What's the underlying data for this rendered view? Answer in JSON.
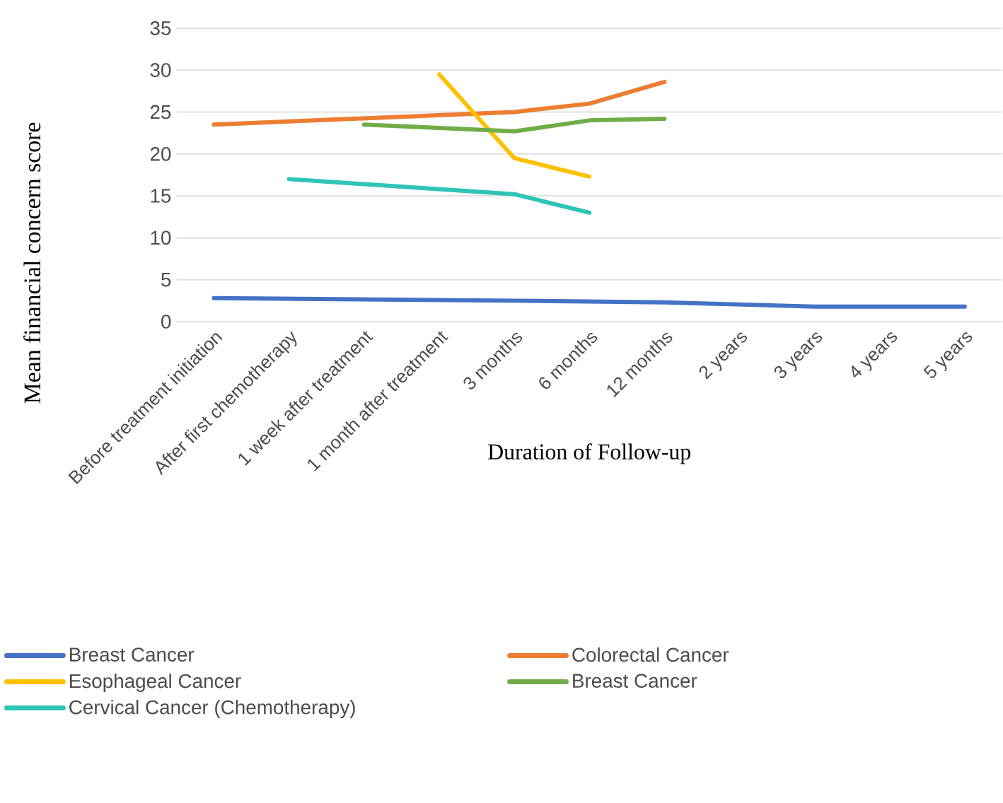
{
  "chart_data": {
    "type": "line",
    "xlabel": "Duration of Follow-up",
    "ylabel": "Mean financial concern  score",
    "categories": [
      "Before treatment initiation",
      "After first chemotherapy",
      "1 week after treatment",
      "1 month after treatment",
      "3 months",
      "6 months",
      "12 months",
      "2 years",
      "3 years",
      "4 years",
      "5 years"
    ],
    "series": [
      {
        "name": "Breast Cancer",
        "color": "#4472c4",
        "values": [
          2.8,
          null,
          null,
          null,
          2.5,
          2.4,
          2.3,
          null,
          1.8,
          1.8,
          1.8
        ]
      },
      {
        "name": "Colorectal Cancer",
        "color": "#ed7d31",
        "values": [
          23.5,
          null,
          null,
          null,
          25,
          26,
          28.6,
          null,
          null,
          null,
          null
        ]
      },
      {
        "name": "Esophageal Cancer",
        "color": "#ffc000",
        "values": [
          null,
          null,
          null,
          29.5,
          19.5,
          17.3,
          null,
          null,
          null,
          null,
          null
        ]
      },
      {
        "name": "Breast Cancer",
        "color": "#70ad47",
        "values": [
          null,
          null,
          23.5,
          null,
          22.7,
          24,
          24.2,
          null,
          null,
          null,
          null
        ]
      },
      {
        "name": "Cervical Cancer (Chemotherapy)",
        "color": "#2ec4b6",
        "values": [
          null,
          17,
          null,
          null,
          15.2,
          13,
          null,
          null,
          null,
          null,
          null
        ]
      }
    ],
    "ylim": [
      0,
      35
    ],
    "yticks": [
      0,
      5,
      10,
      15,
      20,
      25,
      30,
      35
    ],
    "grid": "y",
    "legend": "bottom",
    "marker": "none",
    "line_style": "solid"
  }
}
